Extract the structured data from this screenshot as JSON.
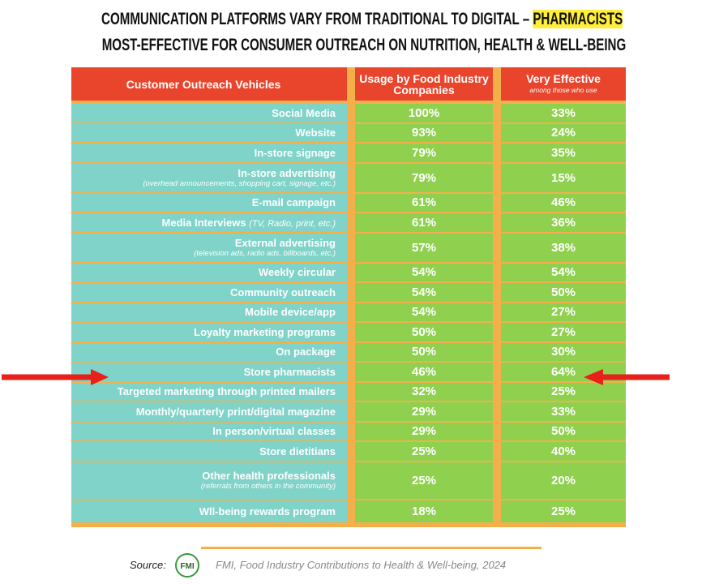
{
  "header": {
    "title_line1": "COMMUNICATION PLATFORMS VARY FROM TRADITIONAL TO DIGITAL – ",
    "title_highlight": "PHARMACISTS",
    "title_line2": "MOST-EFFECTIVE FOR CONSUMER OUTREACH ON NUTRITION, HEALTH & WELL-BEING"
  },
  "table": {
    "columns": [
      "Customer Outreach Vehicles",
      "Usage by Food Industry Companies",
      "Very Effective"
    ],
    "column_note": "among those who use",
    "rows": [
      {
        "name": "Social Media",
        "usage": "100%",
        "effective": "33%"
      },
      {
        "name": "Website",
        "usage": "93%",
        "effective": "24%"
      },
      {
        "name": "In-store signage",
        "usage": "79%",
        "effective": "35%"
      },
      {
        "name": "In-store advertising",
        "note": "(overhead announcements, shopping cart, signage, etc.)",
        "usage": "79%",
        "effective": "15%"
      },
      {
        "name": "E-mail campaign",
        "usage": "61%",
        "effective": "46%"
      },
      {
        "name": "Media Interviews",
        "inline_note": "(TV, Radio, print, etc.)",
        "usage": "61%",
        "effective": "36%"
      },
      {
        "name": "External advertising",
        "note": "(television ads, radio ads, billboards, etc.)",
        "usage": "57%",
        "effective": "38%"
      },
      {
        "name": "Weekly circular",
        "usage": "54%",
        "effective": "54%"
      },
      {
        "name": "Community outreach",
        "usage": "54%",
        "effective": "50%"
      },
      {
        "name": "Mobile device/app",
        "usage": "54%",
        "effective": "27%"
      },
      {
        "name": "Loyalty marketing programs",
        "usage": "50%",
        "effective": "27%"
      },
      {
        "name": "On package",
        "usage": "50%",
        "effective": "30%"
      },
      {
        "name": "Store pharmacists",
        "usage": "46%",
        "effective": "64%"
      },
      {
        "name": "Targeted marketing through printed mailers",
        "usage": "32%",
        "effective": "25%"
      },
      {
        "name": "Monthly/quarterly print/digital magazine",
        "usage": "29%",
        "effective": "33%"
      },
      {
        "name": "In person/virtual classes",
        "usage": "29%",
        "effective": "50%"
      },
      {
        "name": "Store dietitians",
        "usage": "25%",
        "effective": "40%"
      },
      {
        "name": "Other health professionals",
        "note": "(referrals from others in the community)",
        "usage": "25%",
        "effective": "20%"
      },
      {
        "name": "Wll-being rewards program",
        "usage": "18%",
        "effective": "25%"
      }
    ]
  },
  "footer": {
    "source_label": "Source:",
    "logo": "FMI",
    "source": "FMI, Food Industry Contributions to Health & Well-being, 2024"
  }
}
